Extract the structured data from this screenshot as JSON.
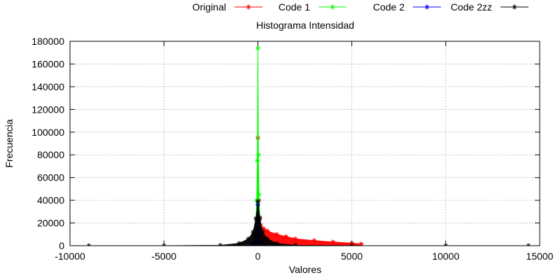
{
  "chart_data": {
    "type": "line",
    "title": "Histograma Intensidad",
    "xlabel": "Valores",
    "ylabel": "Frecuencia",
    "xlim": [
      -10000,
      15000
    ],
    "ylim": [
      0,
      180000
    ],
    "x_ticks": [
      -10000,
      -5000,
      0,
      5000,
      10000,
      15000
    ],
    "y_ticks": [
      0,
      20000,
      40000,
      60000,
      80000,
      100000,
      120000,
      140000,
      160000,
      180000
    ],
    "x_tick_labels": [
      "-10000",
      "-5000",
      "0",
      "5000",
      "10000",
      "15000"
    ],
    "y_tick_labels": [
      "0",
      "20000",
      "40000",
      "60000",
      "80000",
      "100000",
      "120000",
      "140000",
      "160000",
      "180000"
    ],
    "grid": true,
    "legend_position": "top",
    "series": [
      {
        "name": "Original",
        "color": "#ff0000",
        "marker": "*",
        "x": [
          -200,
          -100,
          -50,
          0,
          50,
          100,
          150,
          300,
          500,
          1000,
          1500,
          2000,
          3000,
          4000,
          5000,
          5500
        ],
        "y": [
          1500,
          6000,
          20000,
          95000,
          40000,
          25000,
          18000,
          15000,
          13000,
          10000,
          8000,
          6000,
          4500,
          3200,
          2200,
          1500
        ]
      },
      {
        "name": "Code 1",
        "color": "#00ff00",
        "marker": "*",
        "x": [
          -300,
          -150,
          -60,
          -30,
          0,
          30,
          60,
          150,
          300
        ],
        "y": [
          1000,
          8000,
          40000,
          75000,
          174000,
          80000,
          45000,
          9000,
          1000
        ]
      },
      {
        "name": "Code 2",
        "color": "#0000ff",
        "marker": "*",
        "x": [
          -300,
          -150,
          -50,
          0,
          50,
          150,
          300
        ],
        "y": [
          2000,
          9000,
          22000,
          36000,
          22000,
          9000,
          2000
        ]
      },
      {
        "name": "Code 2zz",
        "color": "#000000",
        "marker": "*",
        "x": [
          -9000,
          -5000,
          -2000,
          -1000,
          -500,
          -250,
          -100,
          0,
          100,
          250,
          500,
          1000,
          2000,
          5000,
          10000,
          14400
        ],
        "y": [
          0,
          0,
          300,
          2000,
          6000,
          12000,
          24000,
          39000,
          24000,
          12000,
          6000,
          2000,
          300,
          0,
          0,
          0
        ]
      }
    ]
  }
}
